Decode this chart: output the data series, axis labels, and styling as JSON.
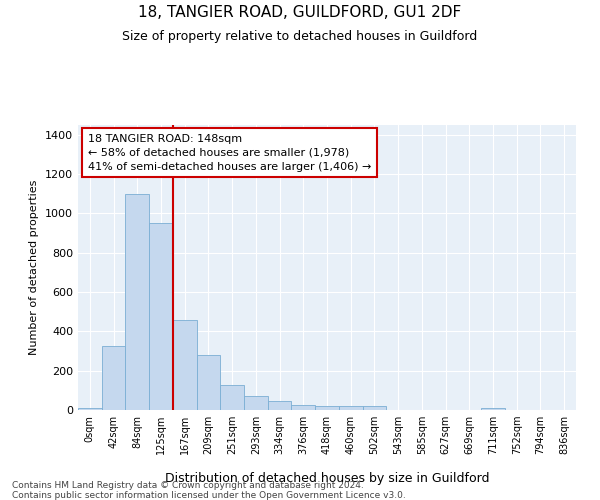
{
  "title": "18, TANGIER ROAD, GUILDFORD, GU1 2DF",
  "subtitle": "Size of property relative to detached houses in Guildford",
  "xlabel": "Distribution of detached houses by size in Guildford",
  "ylabel": "Number of detached properties",
  "categories": [
    "0sqm",
    "42sqm",
    "84sqm",
    "125sqm",
    "167sqm",
    "209sqm",
    "251sqm",
    "293sqm",
    "334sqm",
    "376sqm",
    "418sqm",
    "460sqm",
    "502sqm",
    "543sqm",
    "585sqm",
    "627sqm",
    "669sqm",
    "711sqm",
    "752sqm",
    "794sqm",
    "836sqm"
  ],
  "bar_heights": [
    10,
    325,
    1100,
    950,
    460,
    280,
    125,
    70,
    45,
    25,
    20,
    20,
    20,
    0,
    0,
    0,
    0,
    10,
    0,
    0,
    0
  ],
  "bar_color": "#c5d8ee",
  "bar_edge_color": "#7aaed4",
  "bar_width": 1.0,
  "vline_x": 3.5,
  "vline_color": "#cc0000",
  "ylim": [
    0,
    1450
  ],
  "yticks": [
    0,
    200,
    400,
    600,
    800,
    1000,
    1200,
    1400
  ],
  "annotation_text": "18 TANGIER ROAD: 148sqm\n← 58% of detached houses are smaller (1,978)\n41% of semi-detached houses are larger (1,406) →",
  "annotation_box_color": "#ffffff",
  "annotation_box_edge": "#cc0000",
  "footer_text": "Contains HM Land Registry data © Crown copyright and database right 2024.\nContains public sector information licensed under the Open Government Licence v3.0.",
  "bg_color": "#e8f0f8"
}
